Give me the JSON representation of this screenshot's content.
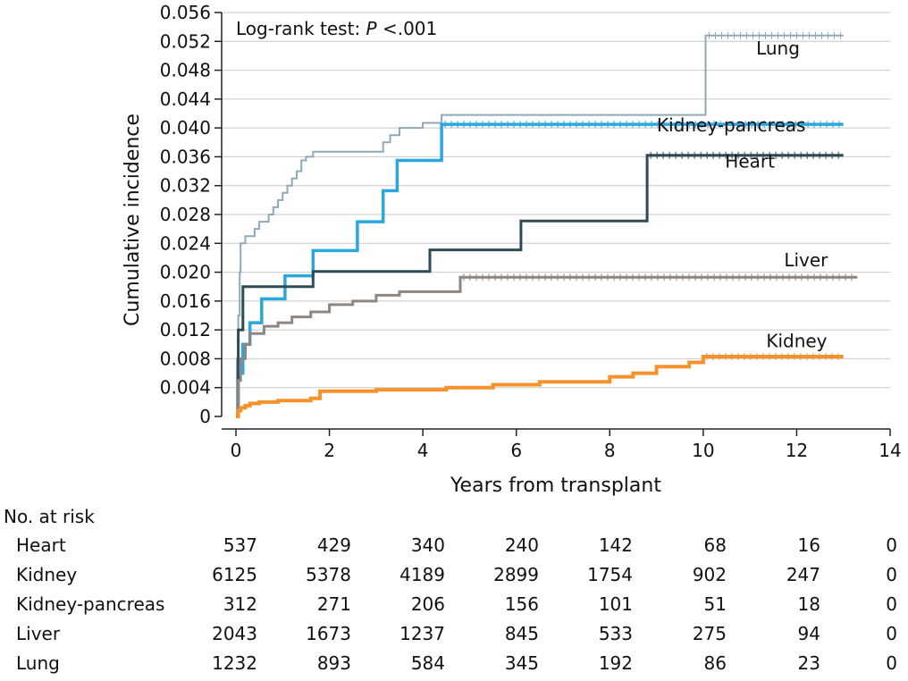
{
  "chart_data": {
    "type": "line",
    "step": true,
    "annotation": {
      "prefix": "Log-rank test: ",
      "italic": "P",
      "suffix": " <.001"
    },
    "xlabel": "Years from transplant",
    "ylabel": "Cumulative incidence",
    "xlim": [
      0,
      14
    ],
    "ylim": [
      0,
      0.056
    ],
    "xticks": [
      "0",
      "2",
      "4",
      "6",
      "8",
      "10",
      "12",
      "14"
    ],
    "yticks": [
      "0",
      "0.004",
      "0.008",
      "0.012",
      "0.016",
      "0.020",
      "0.024",
      "0.028",
      "0.032",
      "0.036",
      "0.040",
      "0.044",
      "0.048",
      "0.052",
      "0.056"
    ],
    "grid": "horizontal",
    "series": [
      {
        "name": "Lung",
        "color": "#8fa9b5",
        "width": 2,
        "label_at": [
          11.6,
          0.0502
        ],
        "points": [
          [
            0,
            0
          ],
          [
            0.02,
            0.008
          ],
          [
            0.05,
            0.014
          ],
          [
            0.08,
            0.02
          ],
          [
            0.1,
            0.024
          ],
          [
            0.2,
            0.025
          ],
          [
            0.3,
            0.025
          ],
          [
            0.4,
            0.026
          ],
          [
            0.5,
            0.027
          ],
          [
            0.7,
            0.028
          ],
          [
            0.8,
            0.029
          ],
          [
            0.9,
            0.03
          ],
          [
            1.0,
            0.031
          ],
          [
            1.1,
            0.032
          ],
          [
            1.2,
            0.033
          ],
          [
            1.3,
            0.034
          ],
          [
            1.4,
            0.0355
          ],
          [
            1.5,
            0.036
          ],
          [
            1.65,
            0.0367
          ],
          [
            3.1,
            0.0367
          ],
          [
            3.15,
            0.038
          ],
          [
            3.3,
            0.039
          ],
          [
            3.5,
            0.04
          ],
          [
            4.0,
            0.0407
          ],
          [
            4.4,
            0.0418
          ],
          [
            10.0,
            0.0418
          ],
          [
            10.05,
            0.0528
          ],
          [
            13.0,
            0.0528
          ]
        ]
      },
      {
        "name": "Kidney-pancreas",
        "color": "#2ba7df",
        "width": 3.5,
        "label_at": [
          10.6,
          0.0395
        ],
        "points": [
          [
            0,
            0
          ],
          [
            0.05,
            0.006
          ],
          [
            0.15,
            0.01
          ],
          [
            0.3,
            0.013
          ],
          [
            0.55,
            0.0163
          ],
          [
            1.05,
            0.0195
          ],
          [
            1.65,
            0.023
          ],
          [
            2.6,
            0.027
          ],
          [
            3.15,
            0.0313
          ],
          [
            3.45,
            0.0355
          ],
          [
            4.4,
            0.0405
          ],
          [
            13.0,
            0.0405
          ]
        ]
      },
      {
        "name": "Heart",
        "color": "#2e4a57",
        "width": 3,
        "label_at": [
          11.0,
          0.0345
        ],
        "points": [
          [
            0,
            0
          ],
          [
            0.05,
            0.012
          ],
          [
            0.15,
            0.018
          ],
          [
            1.65,
            0.0201
          ],
          [
            4.15,
            0.0231
          ],
          [
            6.1,
            0.0271
          ],
          [
            8.8,
            0.0362
          ],
          [
            13.0,
            0.0362
          ]
        ]
      },
      {
        "name": "Liver",
        "color": "#8e8680",
        "width": 3,
        "label_at": [
          12.2,
          0.0208
        ],
        "points": [
          [
            0,
            0
          ],
          [
            0.05,
            0.005
          ],
          [
            0.1,
            0.008
          ],
          [
            0.2,
            0.01
          ],
          [
            0.3,
            0.0115
          ],
          [
            0.6,
            0.0125
          ],
          [
            0.9,
            0.013
          ],
          [
            1.2,
            0.0138
          ],
          [
            1.6,
            0.0145
          ],
          [
            2.0,
            0.0155
          ],
          [
            2.5,
            0.016
          ],
          [
            3.0,
            0.0168
          ],
          [
            3.5,
            0.0173
          ],
          [
            4.8,
            0.0193
          ],
          [
            13.3,
            0.0193
          ]
        ]
      },
      {
        "name": "Kidney",
        "color": "#f5922b",
        "width": 4,
        "label_at": [
          12.0,
          0.0096
        ],
        "points": [
          [
            0,
            0
          ],
          [
            0.05,
            0.0008
          ],
          [
            0.1,
            0.0012
          ],
          [
            0.2,
            0.0015
          ],
          [
            0.3,
            0.0018
          ],
          [
            0.5,
            0.002
          ],
          [
            0.9,
            0.0022
          ],
          [
            1.6,
            0.0025
          ],
          [
            1.8,
            0.0035
          ],
          [
            3.0,
            0.0037
          ],
          [
            4.5,
            0.004
          ],
          [
            5.5,
            0.0044
          ],
          [
            6.5,
            0.0048
          ],
          [
            8.0,
            0.0055
          ],
          [
            8.5,
            0.006
          ],
          [
            9.0,
            0.0069
          ],
          [
            9.7,
            0.0075
          ],
          [
            10.0,
            0.0083
          ],
          [
            13.0,
            0.0083
          ]
        ]
      }
    ]
  },
  "risk_table": {
    "title": "No. at risk",
    "rows": [
      {
        "name": "Heart",
        "values": [
          "537",
          "429",
          "340",
          "240",
          "142",
          "68",
          "16",
          "0"
        ]
      },
      {
        "name": "Kidney",
        "values": [
          "6125",
          "5378",
          "4189",
          "2899",
          "1754",
          "902",
          "247",
          "0"
        ]
      },
      {
        "name": "Kidney-pancreas",
        "values": [
          "312",
          "271",
          "206",
          "156",
          "101",
          "51",
          "18",
          "0"
        ]
      },
      {
        "name": "Liver",
        "values": [
          "2043",
          "1673",
          "1237",
          "845",
          "533",
          "275",
          "94",
          "0"
        ]
      },
      {
        "name": "Lung",
        "values": [
          "1232",
          "893",
          "584",
          "345",
          "192",
          "86",
          "23",
          "0"
        ]
      }
    ]
  }
}
